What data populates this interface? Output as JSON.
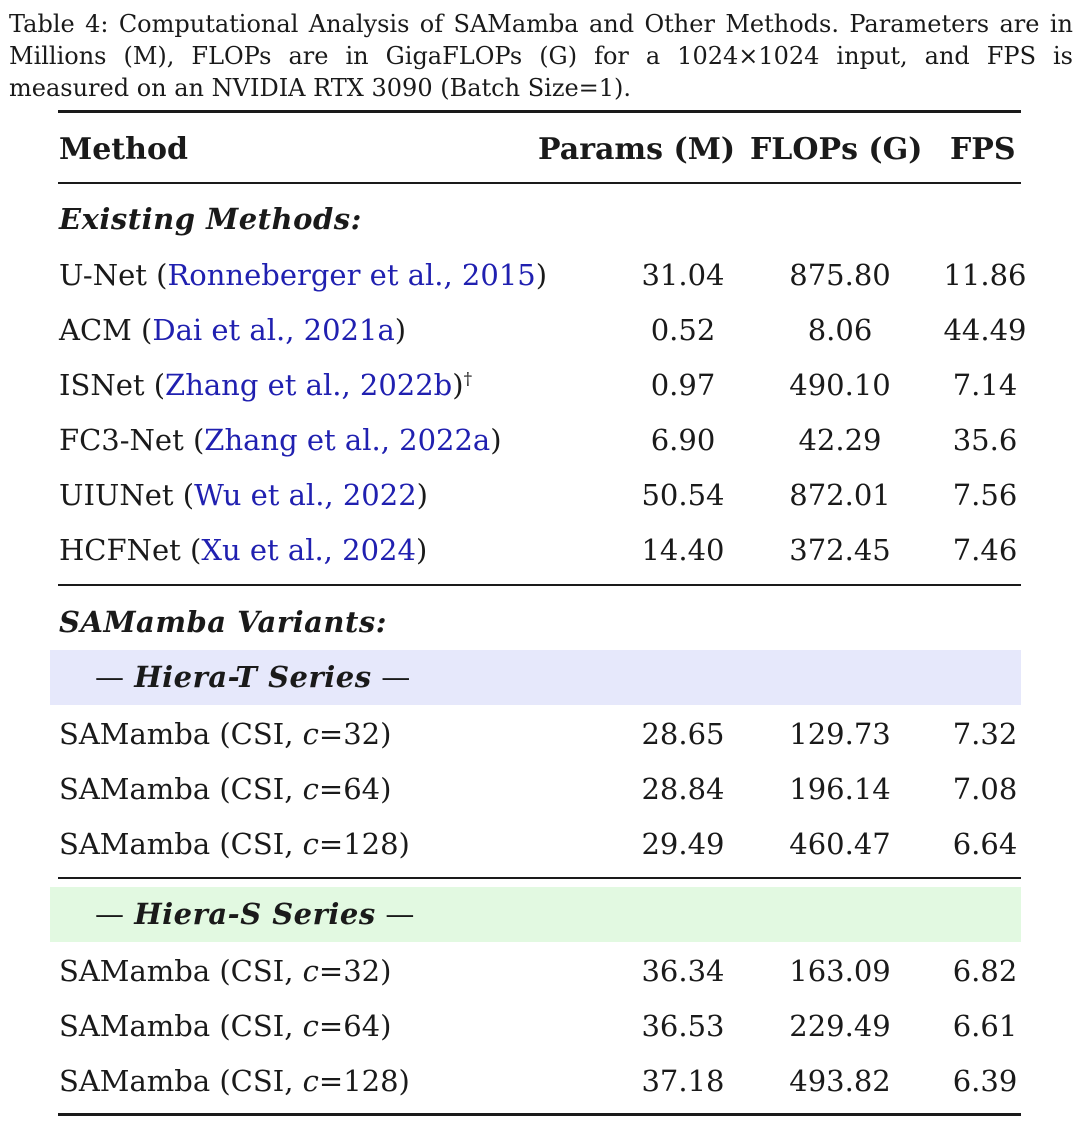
{
  "caption": "Table 4: Computational Analysis of SAMamba and Other Methods. Parameters are in Millions (M), FLOPs are in GigaFLOPs (G) for a 1024×1024 input, and FPS is measured on an NVIDIA RTX 3090 (Batch Size=1).",
  "header": {
    "method": "Method",
    "params": "Params (M)",
    "flops": "FLOPs (G)",
    "fps": "FPS"
  },
  "existing": {
    "title": "Existing Methods:",
    "rows": [
      {
        "name": "U-Net (",
        "cite": "Ronneberger et al., 2015",
        "suffix": ")",
        "params": "31.04",
        "flops": "875.80",
        "fps": "11.86"
      },
      {
        "name": "ACM (",
        "cite": "Dai et al., 2021a",
        "suffix": ")",
        "params": "0.52",
        "flops": "8.06",
        "fps": "44.49"
      },
      {
        "name": "ISNet (",
        "cite": "Zhang et al., 2022b",
        "suffix": ")",
        "sup": "†",
        "params": "0.97",
        "flops": "490.10",
        "fps": "7.14"
      },
      {
        "name": "FC3-Net (",
        "cite": "Zhang et al., 2022a",
        "suffix": ")",
        "params": "6.90",
        "flops": "42.29",
        "fps": "35.6"
      },
      {
        "name": "UIUNet (",
        "cite": "Wu et al., 2022",
        "suffix": ")",
        "params": "50.54",
        "flops": "872.01",
        "fps": "7.56"
      },
      {
        "name": "HCFNet (",
        "cite": "Xu et al., 2024",
        "suffix": ")",
        "params": "14.40",
        "flops": "372.45",
        "fps": "7.46"
      }
    ]
  },
  "variants": {
    "title": "SAMamba Variants:",
    "groups": [
      {
        "label": "Hiera-T Series",
        "dash": "—",
        "color": "#e6e8fb",
        "rows": [
          {
            "prefix": "SAMamba (CSI, ",
            "var": "c",
            "value": "=32)",
            "params": "28.65",
            "flops": "129.73",
            "fps": "7.32"
          },
          {
            "prefix": "SAMamba (CSI, ",
            "var": "c",
            "value": "=64)",
            "params": "28.84",
            "flops": "196.14",
            "fps": "7.08"
          },
          {
            "prefix": "SAMamba (CSI, ",
            "var": "c",
            "value": "=128)",
            "params": "29.49",
            "flops": "460.47",
            "fps": "6.64"
          }
        ]
      },
      {
        "label": "Hiera-S Series",
        "dash": "—",
        "color": "#e2f9e1",
        "rows": [
          {
            "prefix": "SAMamba (CSI, ",
            "var": "c",
            "value": "=32)",
            "params": "36.34",
            "flops": "163.09",
            "fps": "6.82"
          },
          {
            "prefix": "SAMamba (CSI, ",
            "var": "c",
            "value": "=64)",
            "params": "36.53",
            "flops": "229.49",
            "fps": "6.61"
          },
          {
            "prefix": "SAMamba (CSI, ",
            "var": "c",
            "value": "=128)",
            "params": "37.18",
            "flops": "493.82",
            "fps": "6.39"
          }
        ]
      }
    ]
  },
  "colors": {
    "citation": "#2020b0",
    "text": "#1a1a1a"
  }
}
